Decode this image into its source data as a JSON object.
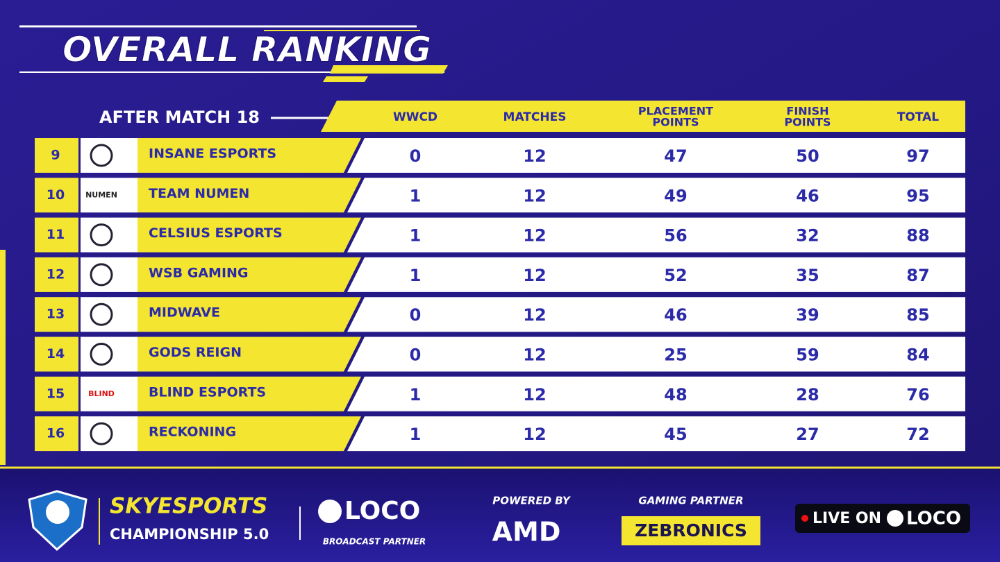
{
  "header": {
    "title": "OVERALL RANKING",
    "subtitle": "AFTER MATCH 18"
  },
  "table": {
    "columns": [
      [
        "WWCD"
      ],
      [
        "MATCHES"
      ],
      [
        "PLACEMENT",
        "POINTS"
      ],
      [
        "FINISH",
        "POINTS"
      ],
      [
        "TOTAL"
      ]
    ],
    "rows": [
      {
        "rank": "9",
        "team": "INSANE ESPORTS",
        "values": [
          "0",
          "12",
          "47",
          "50",
          "97"
        ]
      },
      {
        "rank": "10",
        "team": "TEAM NUMEN",
        "logo": "NUMEN",
        "values": [
          "1",
          "12",
          "49",
          "46",
          "95"
        ]
      },
      {
        "rank": "11",
        "team": "CELSIUS ESPORTS",
        "values": [
          "1",
          "12",
          "56",
          "32",
          "88"
        ]
      },
      {
        "rank": "12",
        "team": "WSB GAMING",
        "values": [
          "1",
          "12",
          "52",
          "35",
          "87"
        ]
      },
      {
        "rank": "13",
        "team": "MIDWAVE",
        "values": [
          "0",
          "12",
          "46",
          "39",
          "85"
        ]
      },
      {
        "rank": "14",
        "team": "GODS REIGN",
        "values": [
          "0",
          "12",
          "25",
          "59",
          "84"
        ]
      },
      {
        "rank": "15",
        "team": "BLIND ESPORTS",
        "logo": "BLIND",
        "values": [
          "1",
          "12",
          "48",
          "28",
          "76"
        ]
      },
      {
        "rank": "16",
        "team": "RECKONING",
        "values": [
          "1",
          "12",
          "45",
          "27",
          "72"
        ]
      }
    ]
  },
  "footer": {
    "brand": "SKYESPORTS",
    "event": "CHAMPIONSHIP 5.0",
    "broadcaster": "LOCO",
    "broadcaster_role": "BROADCAST PARTNER",
    "powered_label": "POWERED BY",
    "powered": "AMD",
    "gaming_label": "GAMING PARTNER",
    "gaming": "ZEBRONICS",
    "live_label": "LIVE ON",
    "live": "LOCO"
  }
}
